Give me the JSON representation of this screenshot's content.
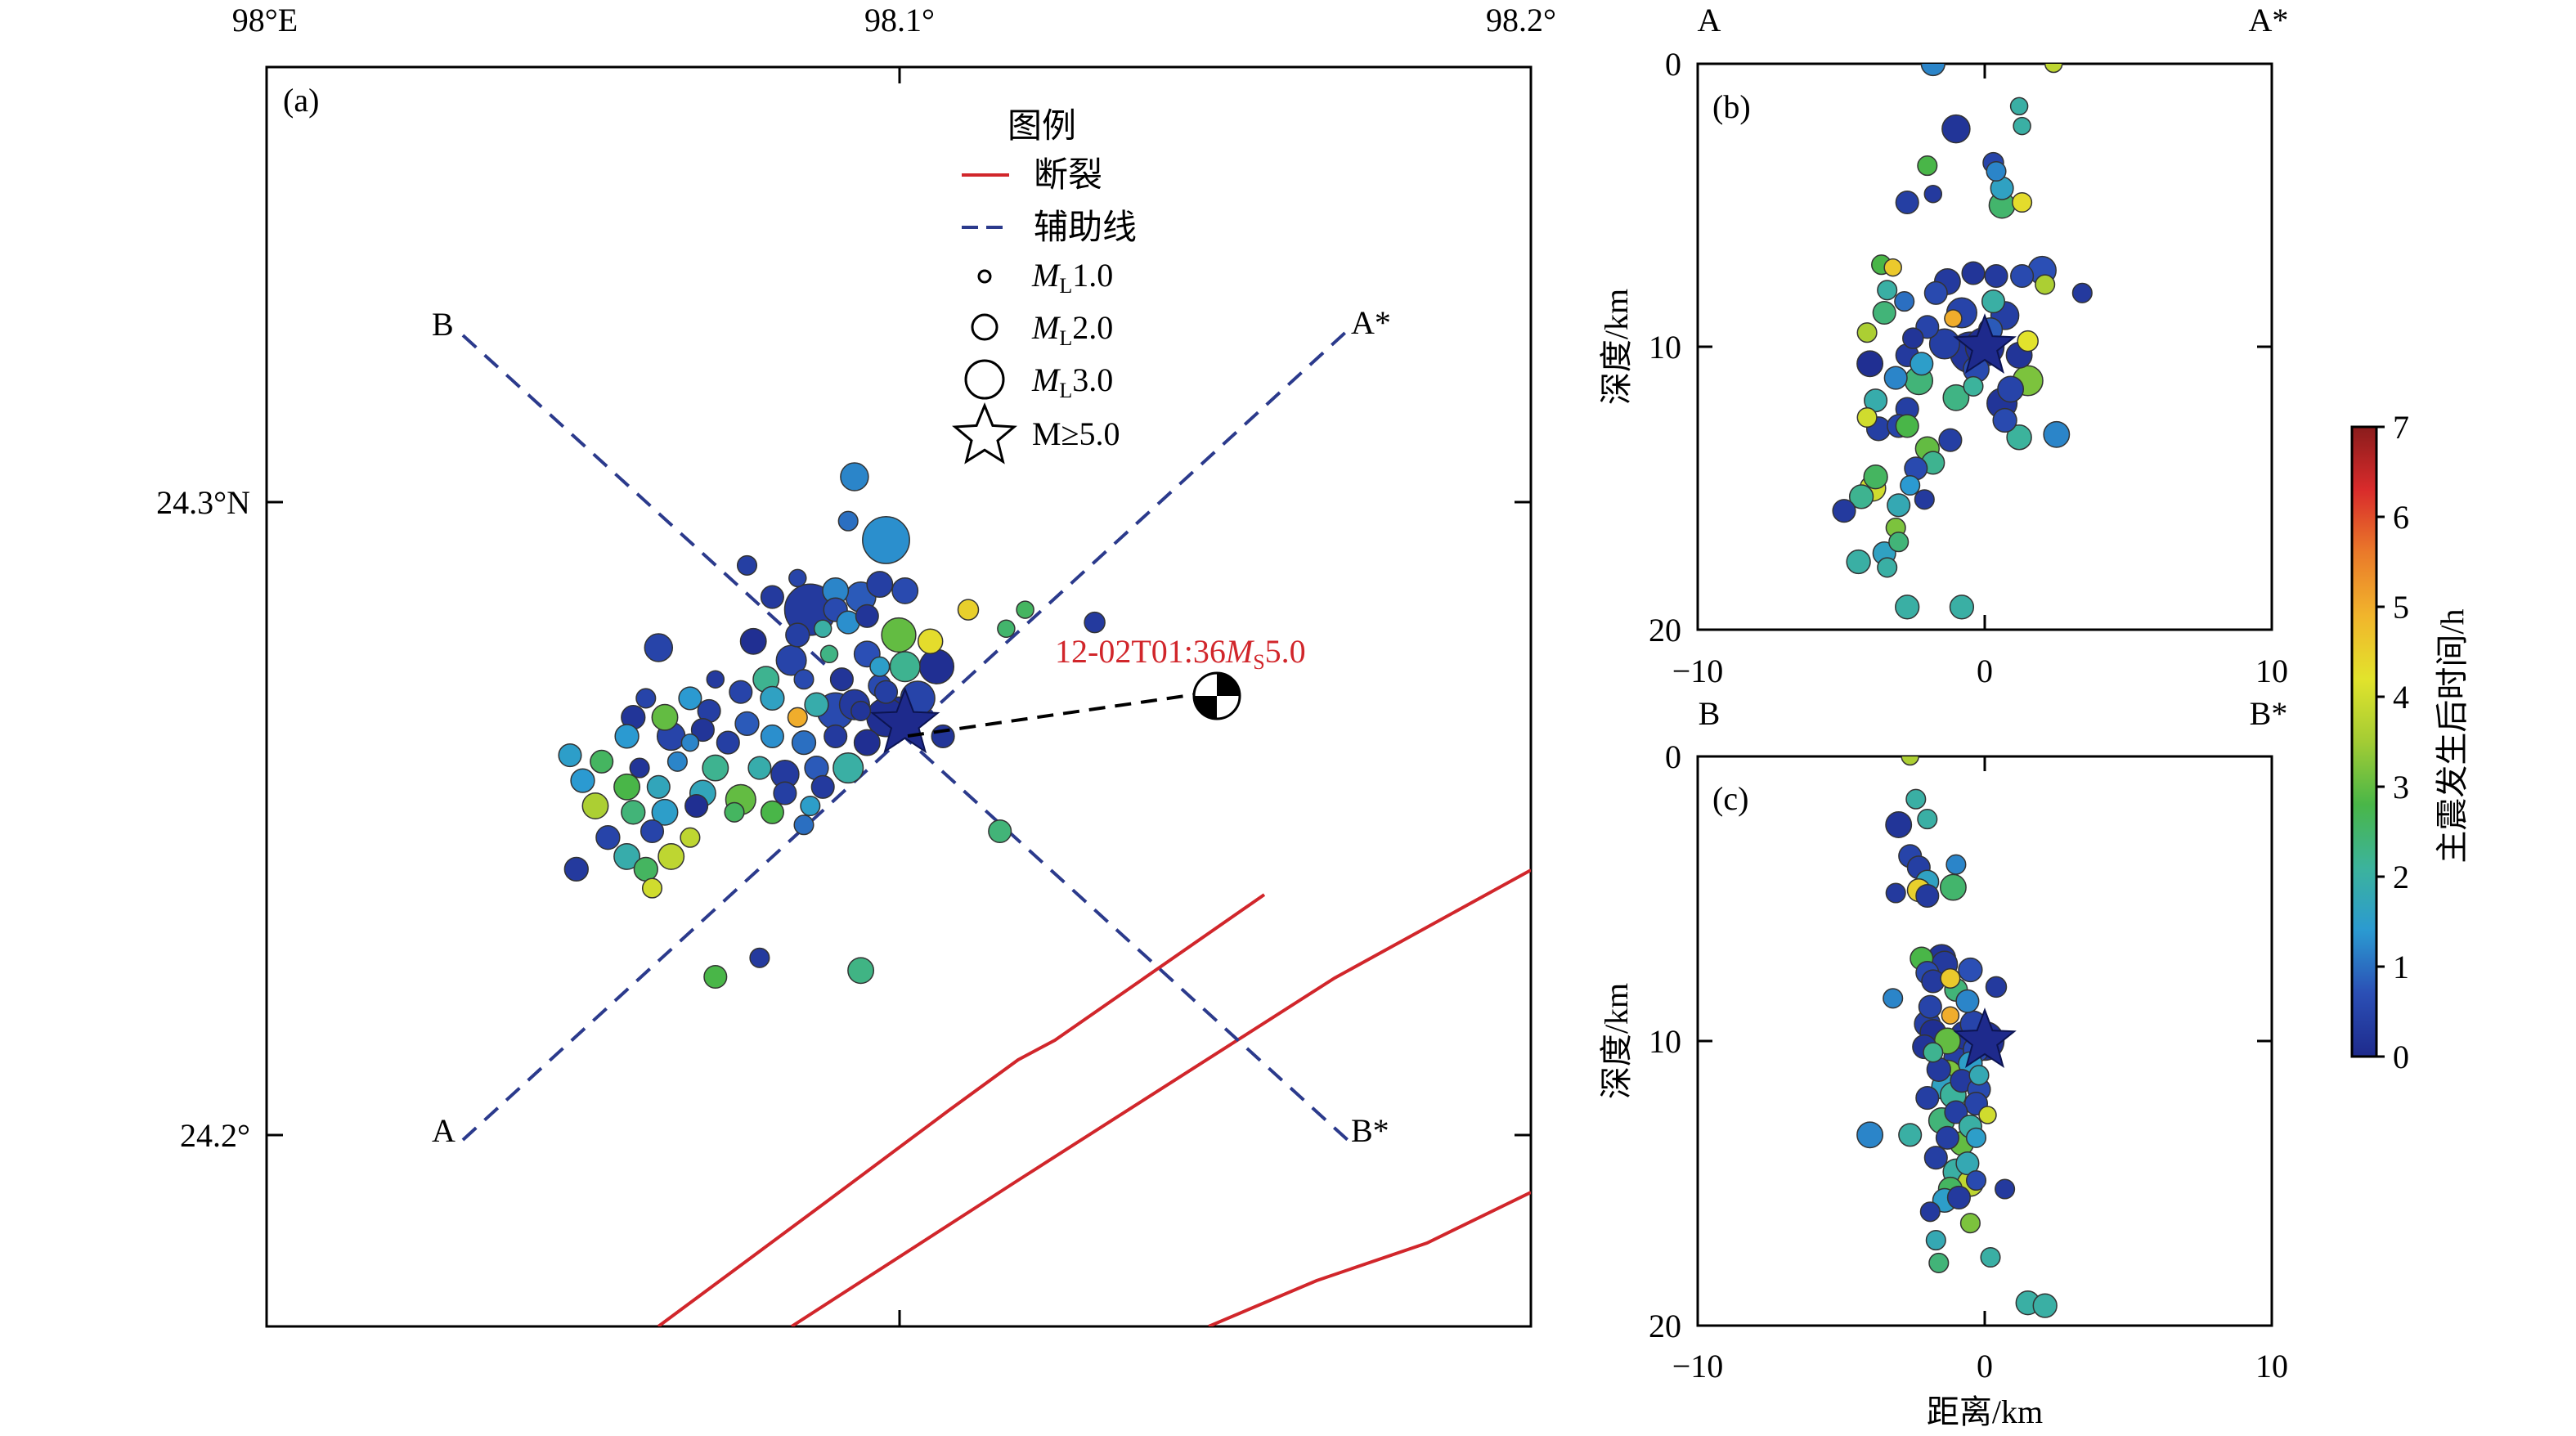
{
  "map": {
    "panel_label": "(a)",
    "lon_ticks": [
      "98°E",
      "98.1°",
      "98.2°"
    ],
    "lat_ticks": [
      "24.3°N",
      "24.2°"
    ],
    "legend": {
      "title": "图例",
      "fault": "断裂",
      "aux_line": "辅助线",
      "mag_sym": "M",
      "mag_sub": "L",
      "mag1": "1.0",
      "mag2": "2.0",
      "mag3": "3.0",
      "mainshock": "M≥5.0"
    },
    "profiles": {
      "A": {
        "start": "A",
        "end": "A*"
      },
      "B": {
        "start": "B",
        "end": "B*"
      }
    },
    "mainshock_label": {
      "prefix": "12-02T01:36",
      "sym": "M",
      "sub": "S",
      "val": "5.0",
      "color": "#d1262b"
    },
    "fault_color": "#d1262b",
    "aux_color": "#2b3a8c"
  },
  "section_b": {
    "panel_label": "(b)",
    "left_label": "A",
    "right_label": "A*",
    "x_ticks": [
      "−10",
      "0",
      "10"
    ],
    "y_ticks": [
      "0",
      "10",
      "20"
    ],
    "ylabel": "深度/km"
  },
  "section_c": {
    "panel_label": "(c)",
    "left_label": "B",
    "right_label": "B*",
    "x_ticks": [
      "−10",
      "0",
      "10"
    ],
    "y_ticks": [
      "0",
      "10",
      "20"
    ],
    "ylabel": "深度/km",
    "xlabel": "距离/km"
  },
  "colorbar": {
    "label": "主震发生后时间/h",
    "ticks": [
      "0",
      "1",
      "2",
      "3",
      "4",
      "5",
      "6",
      "7"
    ],
    "range": [
      0,
      7
    ]
  },
  "colors": {
    "jet": [
      "#1e2a8c",
      "#2b4fb5",
      "#2b9ad1",
      "#3cb39c",
      "#49b648",
      "#a3cc34",
      "#e2e32c",
      "#f1b52c",
      "#ea7a2a",
      "#d92b2b",
      "#8a1c1c"
    ]
  },
  "events": {
    "map": [
      [
        98.093,
        24.304,
        1.2,
        2.0
      ],
      [
        98.098,
        24.294,
        1.3,
        3.8
      ],
      [
        98.084,
        24.288,
        0.5,
        1.0
      ],
      [
        98.08,
        24.285,
        0.3,
        1.5
      ],
      [
        98.09,
        24.286,
        1.2,
        1.8
      ],
      [
        98.094,
        24.285,
        0.8,
        2.2
      ],
      [
        98.097,
        24.287,
        0.4,
        1.8
      ],
      [
        98.101,
        24.286,
        0.6,
        1.8
      ],
      [
        98.086,
        24.283,
        0.3,
        4.2
      ],
      [
        98.09,
        24.283,
        0.6,
        1.6
      ],
      [
        98.092,
        24.281,
        1.3,
        1.5
      ],
      [
        98.095,
        24.282,
        0.2,
        1.5
      ],
      [
        98.084,
        24.279,
        0.4,
        1.6
      ],
      [
        98.088,
        24.28,
        2.0,
        1.0
      ],
      [
        98.1,
        24.279,
        3.0,
        2.6
      ],
      [
        98.105,
        24.278,
        4.3,
        1.7
      ],
      [
        98.117,
        24.28,
        2.5,
        1.0
      ],
      [
        98.062,
        24.277,
        0.5,
        2.0
      ],
      [
        98.077,
        24.278,
        0.1,
        1.8
      ],
      [
        98.083,
        24.275,
        0.5,
        2.2
      ],
      [
        98.089,
        24.276,
        2.3,
        1.0
      ],
      [
        98.095,
        24.276,
        0.7,
        1.8
      ],
      [
        98.097,
        24.274,
        1.5,
        1.2
      ],
      [
        98.101,
        24.274,
        2.2,
        2.2
      ],
      [
        98.106,
        24.274,
        0.1,
        2.6
      ],
      [
        98.071,
        24.272,
        0.3,
        1.0
      ],
      [
        98.079,
        24.272,
        2.2,
        1.8
      ],
      [
        98.085,
        24.272,
        0.6,
        1.2
      ],
      [
        98.091,
        24.272,
        0.2,
        1.5
      ],
      [
        98.097,
        24.271,
        0.6,
        1.5
      ],
      [
        98.06,
        24.269,
        0.5,
        1.2
      ],
      [
        98.067,
        24.269,
        1.4,
        1.5
      ],
      [
        98.075,
        24.27,
        0.5,
        1.5
      ],
      [
        98.08,
        24.269,
        1.6,
        1.6
      ],
      [
        98.087,
        24.268,
        1.9,
        1.6
      ],
      [
        98.093,
        24.268,
        0.3,
        2.2
      ],
      [
        98.098,
        24.27,
        0.4,
        1.5
      ],
      [
        98.058,
        24.266,
        0.2,
        1.6
      ],
      [
        98.063,
        24.266,
        3.0,
        1.8
      ],
      [
        98.07,
        24.267,
        0.4,
        1.5
      ],
      [
        98.076,
        24.265,
        0.8,
        1.6
      ],
      [
        98.084,
        24.266,
        5.0,
        1.2
      ],
      [
        98.09,
        24.267,
        0.6,
        2.8
      ],
      [
        98.094,
        24.267,
        0.2,
        1.2
      ],
      [
        98.098,
        24.266,
        0.1,
        3.0
      ],
      [
        98.057,
        24.263,
        1.4,
        1.6
      ],
      [
        98.064,
        24.263,
        0.5,
        2.0
      ],
      [
        98.069,
        24.264,
        0.2,
        1.5
      ],
      [
        98.073,
        24.262,
        0.4,
        1.5
      ],
      [
        98.08,
        24.263,
        1.3,
        1.5
      ],
      [
        98.085,
        24.262,
        1.0,
        1.6
      ],
      [
        98.09,
        24.263,
        0.3,
        1.5
      ],
      [
        98.095,
        24.262,
        0.1,
        1.8
      ],
      [
        98.048,
        24.26,
        1.5,
        1.5
      ],
      [
        98.053,
        24.259,
        2.6,
        1.5
      ],
      [
        98.059,
        24.258,
        0.2,
        1.2
      ],
      [
        98.065,
        24.259,
        1.2,
        1.2
      ],
      [
        98.071,
        24.258,
        2.2,
        1.8
      ],
      [
        98.078,
        24.258,
        1.9,
        1.5
      ],
      [
        98.082,
        24.257,
        0.3,
        2.0
      ],
      [
        98.087,
        24.258,
        0.8,
        1.6
      ],
      [
        98.092,
        24.258,
        2.0,
        2.2
      ],
      [
        98.05,
        24.256,
        1.4,
        1.6
      ],
      [
        98.057,
        24.255,
        2.8,
        1.8
      ],
      [
        98.062,
        24.255,
        1.7,
        1.5
      ],
      [
        98.069,
        24.254,
        1.7,
        1.8
      ],
      [
        98.075,
        24.253,
        3.0,
        2.2
      ],
      [
        98.082,
        24.254,
        0.4,
        1.5
      ],
      [
        98.088,
        24.255,
        0.3,
        1.5
      ],
      [
        98.052,
        24.252,
        3.6,
        1.8
      ],
      [
        98.058,
        24.251,
        2.4,
        1.6
      ],
      [
        98.063,
        24.251,
        1.5,
        1.8
      ],
      [
        98.068,
        24.252,
        0.1,
        1.5
      ],
      [
        98.074,
        24.251,
        2.6,
        1.2
      ],
      [
        98.08,
        24.251,
        2.8,
        1.5
      ],
      [
        98.054,
        24.247,
        0.5,
        1.6
      ],
      [
        98.061,
        24.248,
        0.5,
        1.5
      ],
      [
        98.067,
        24.247,
        3.8,
        1.2
      ],
      [
        98.085,
        24.249,
        1.0,
        1.2
      ],
      [
        98.057,
        24.244,
        1.9,
        1.8
      ],
      [
        98.06,
        24.242,
        2.6,
        1.6
      ],
      [
        98.064,
        24.244,
        3.8,
        1.8
      ],
      [
        98.049,
        24.242,
        0.3,
        1.6
      ],
      [
        98.061,
        24.239,
        4.0,
        1.2
      ],
      [
        98.086,
        24.252,
        1.5,
        1.2
      ],
      [
        98.078,
        24.228,
        0.3,
        1.2
      ],
      [
        98.071,
        24.225,
        2.8,
        1.5
      ],
      [
        98.094,
        24.226,
        2.3,
        1.8
      ],
      [
        98.116,
        24.248,
        2.4,
        1.5
      ],
      [
        98.107,
        24.263,
        0.2,
        1.5
      ],
      [
        98.1,
        24.266,
        0.1,
        3.2
      ],
      [
        98.103,
        24.269,
        0.5,
        2.6
      ],
      [
        98.092,
        24.297,
        1.0,
        1.2
      ],
      [
        98.12,
        24.283,
        2.6,
        1.0
      ],
      [
        98.131,
        24.281,
        0.3,
        1.3
      ],
      [
        98.076,
        24.29,
        0.4,
        1.2
      ],
      [
        98.111,
        24.283,
        4.5,
        1.3
      ],
      [
        98.067,
        24.262,
        1.2,
        1.0
      ]
    ],
    "section_b": [
      [
        -1.8,
        0.0,
        1.2,
        1.6
      ],
      [
        2.4,
        0.0,
        3.8,
        1.0
      ],
      [
        1.2,
        1.5,
        2.0,
        1.0
      ],
      [
        1.3,
        2.2,
        2.0,
        1.0
      ],
      [
        -1.0,
        2.3,
        0.2,
        2.0
      ],
      [
        0.3,
        3.5,
        0.5,
        1.3
      ],
      [
        -2.0,
        3.6,
        2.8,
        1.2
      ],
      [
        0.4,
        3.8,
        1.2,
        1.2
      ],
      [
        0.6,
        4.4,
        1.6,
        1.5
      ],
      [
        -1.8,
        4.6,
        0.3,
        1.0
      ],
      [
        1.3,
        4.9,
        4.3,
        1.2
      ],
      [
        -2.7,
        4.9,
        0.4,
        1.5
      ],
      [
        0.6,
        5.0,
        2.5,
        1.8
      ],
      [
        -3.6,
        7.1,
        2.8,
        1.2
      ],
      [
        -3.2,
        7.2,
        4.6,
        1.0
      ],
      [
        2.0,
        7.3,
        0.7,
        2.0
      ],
      [
        -0.4,
        7.4,
        0.2,
        1.5
      ],
      [
        0.4,
        7.5,
        0.3,
        1.5
      ],
      [
        1.3,
        7.5,
        0.6,
        1.5
      ],
      [
        -1.3,
        7.7,
        0.3,
        1.8
      ],
      [
        2.1,
        7.8,
        3.6,
        1.2
      ],
      [
        -3.4,
        8.0,
        2.0,
        1.2
      ],
      [
        3.4,
        8.1,
        0.3,
        1.2
      ],
      [
        -1.7,
        8.1,
        0.6,
        1.5
      ],
      [
        0.3,
        8.4,
        2.0,
        1.5
      ],
      [
        -2.8,
        8.4,
        1.0,
        1.2
      ],
      [
        -0.8,
        8.8,
        0.5,
        2.2
      ],
      [
        -3.5,
        8.8,
        2.4,
        1.5
      ],
      [
        0.7,
        8.9,
        0.4,
        2.0
      ],
      [
        -1.1,
        9.0,
        5.0,
        1.0
      ],
      [
        -2.0,
        9.3,
        0.5,
        1.5
      ],
      [
        0.2,
        9.4,
        0.8,
        1.6
      ],
      [
        -4.1,
        9.5,
        3.6,
        1.2
      ],
      [
        -2.5,
        9.7,
        0.2,
        1.3
      ],
      [
        1.5,
        9.8,
        4.2,
        1.3
      ],
      [
        -1.4,
        9.9,
        0.4,
        2.2
      ],
      [
        0.0,
        10.0,
        0.1,
        3.0
      ],
      [
        -0.5,
        10.2,
        0.2,
        3.2
      ],
      [
        -2.7,
        10.3,
        0.3,
        1.5
      ],
      [
        1.2,
        10.3,
        0.2,
        1.8
      ],
      [
        -4.0,
        10.6,
        0.1,
        1.8
      ],
      [
        -2.2,
        10.6,
        1.5,
        1.5
      ],
      [
        -0.3,
        10.8,
        0.6,
        1.8
      ],
      [
        -2.3,
        11.2,
        2.4,
        2.0
      ],
      [
        1.5,
        11.2,
        3.2,
        2.2
      ],
      [
        -3.1,
        11.1,
        1.2,
        1.5
      ],
      [
        -0.4,
        11.4,
        2.1,
        1.2
      ],
      [
        0.9,
        11.5,
        0.5,
        1.8
      ],
      [
        -1.0,
        11.8,
        2.3,
        1.8
      ],
      [
        -3.8,
        11.9,
        1.9,
        1.5
      ],
      [
        0.6,
        12.0,
        0.2,
        2.2
      ],
      [
        -2.7,
        12.2,
        0.4,
        1.5
      ],
      [
        -4.1,
        12.5,
        4.0,
        1.2
      ],
      [
        0.7,
        12.6,
        0.6,
        1.6
      ],
      [
        -3.0,
        12.8,
        0.5,
        1.5
      ],
      [
        -2.7,
        12.8,
        2.8,
        1.5
      ],
      [
        -3.7,
        12.9,
        0.4,
        1.6
      ],
      [
        2.5,
        13.1,
        1.2,
        1.8
      ],
      [
        1.2,
        13.2,
        2.1,
        1.7
      ],
      [
        -1.2,
        13.3,
        0.4,
        1.5
      ],
      [
        -2.0,
        13.6,
        3.0,
        1.6
      ],
      [
        -1.8,
        14.1,
        2.2,
        1.5
      ],
      [
        -2.4,
        14.3,
        0.6,
        1.5
      ],
      [
        -3.8,
        14.6,
        2.6,
        1.6
      ],
      [
        -3.9,
        15.0,
        4.0,
        1.8
      ],
      [
        -2.6,
        14.9,
        1.4,
        1.2
      ],
      [
        -4.3,
        15.3,
        2.2,
        1.6
      ],
      [
        -2.1,
        15.4,
        0.3,
        1.2
      ],
      [
        -3.0,
        15.6,
        1.8,
        1.5
      ],
      [
        -4.9,
        15.8,
        0.3,
        1.5
      ],
      [
        -3.1,
        16.4,
        3.2,
        1.2
      ],
      [
        -3.0,
        16.9,
        2.4,
        1.2
      ],
      [
        -3.5,
        17.3,
        1.6,
        1.5
      ],
      [
        -4.4,
        17.6,
        2.0,
        1.6
      ],
      [
        -3.4,
        17.8,
        2.0,
        1.2
      ],
      [
        -2.7,
        19.2,
        2.0,
        1.6
      ],
      [
        -0.8,
        19.2,
        2.0,
        1.6
      ]
    ],
    "section_c": [
      [
        -2.6,
        0.0,
        3.6,
        1.0
      ],
      [
        -2.4,
        1.5,
        2.0,
        1.2
      ],
      [
        -2.0,
        2.2,
        2.0,
        1.2
      ],
      [
        -3.0,
        2.4,
        0.2,
        1.8
      ],
      [
        -2.6,
        3.5,
        0.5,
        1.5
      ],
      [
        -1.0,
        3.8,
        1.2,
        1.2
      ],
      [
        -2.3,
        3.9,
        0.4,
        1.5
      ],
      [
        -2.0,
        4.4,
        1.6,
        1.5
      ],
      [
        -1.1,
        4.6,
        2.5,
        1.8
      ],
      [
        -2.3,
        4.7,
        4.5,
        1.5
      ],
      [
        -3.1,
        4.8,
        0.3,
        1.2
      ],
      [
        -2.0,
        4.9,
        0.3,
        1.5
      ],
      [
        -1.5,
        7.1,
        0.2,
        2.0
      ],
      [
        -2.2,
        7.1,
        2.8,
        1.5
      ],
      [
        -1.4,
        7.3,
        0.3,
        1.8
      ],
      [
        -0.5,
        7.5,
        0.7,
        1.6
      ],
      [
        -2.0,
        7.6,
        0.6,
        1.5
      ],
      [
        -1.2,
        7.8,
        4.6,
        1.2
      ],
      [
        -1.8,
        7.9,
        0.3,
        1.5
      ],
      [
        0.4,
        8.1,
        0.3,
        1.3
      ],
      [
        -1.0,
        8.2,
        2.4,
        1.5
      ],
      [
        -3.2,
        8.5,
        1.2,
        1.2
      ],
      [
        -0.6,
        8.6,
        1.2,
        1.5
      ],
      [
        -1.9,
        8.8,
        0.5,
        1.5
      ],
      [
        -1.2,
        9.1,
        5.0,
        1.0
      ],
      [
        -2.0,
        9.4,
        0.4,
        1.8
      ],
      [
        -0.4,
        9.4,
        0.5,
        1.8
      ],
      [
        -1.8,
        9.7,
        0.1,
        1.8
      ],
      [
        -0.7,
        9.8,
        0.2,
        2.0
      ],
      [
        -1.3,
        10.0,
        3.0,
        1.8
      ],
      [
        0.0,
        10.0,
        0.1,
        3.0
      ],
      [
        -2.1,
        10.2,
        0.2,
        1.6
      ],
      [
        -0.3,
        10.3,
        0.6,
        1.8
      ],
      [
        -1.8,
        10.4,
        2.2,
        1.2
      ],
      [
        -0.9,
        10.6,
        0.4,
        2.2
      ],
      [
        -0.5,
        10.8,
        1.5,
        1.6
      ],
      [
        -1.6,
        11.0,
        0.3,
        1.6
      ],
      [
        -0.2,
        11.2,
        1.8,
        1.2
      ],
      [
        -1.3,
        11.2,
        3.2,
        2.2
      ],
      [
        -0.8,
        11.4,
        0.3,
        1.5
      ],
      [
        -1.4,
        11.6,
        1.6,
        1.8
      ],
      [
        -0.2,
        11.7,
        0.6,
        1.5
      ],
      [
        -1.1,
        11.9,
        2.1,
        1.8
      ],
      [
        -2.0,
        12.0,
        0.4,
        1.5
      ],
      [
        -0.3,
        12.2,
        0.5,
        1.5
      ],
      [
        0.1,
        12.6,
        4.0,
        1.0
      ],
      [
        -1.0,
        12.5,
        0.4,
        1.5
      ],
      [
        -1.5,
        12.8,
        2.4,
        1.8
      ],
      [
        -0.5,
        13.0,
        2.0,
        1.5
      ],
      [
        -4.0,
        13.3,
        1.2,
        1.8
      ],
      [
        -2.6,
        13.3,
        2.0,
        1.5
      ],
      [
        -1.3,
        13.4,
        0.4,
        1.5
      ],
      [
        -0.8,
        13.6,
        3.0,
        1.6
      ],
      [
        -0.3,
        13.4,
        1.5,
        1.2
      ],
      [
        -1.7,
        14.1,
        0.4,
        1.5
      ],
      [
        -0.6,
        14.3,
        1.8,
        1.5
      ],
      [
        -1.0,
        14.6,
        2.0,
        1.8
      ],
      [
        -0.3,
        14.9,
        0.6,
        1.2
      ],
      [
        -0.5,
        15.0,
        3.8,
        1.8
      ],
      [
        -1.2,
        15.2,
        2.6,
        1.6
      ],
      [
        0.7,
        15.2,
        0.3,
        1.2
      ],
      [
        -0.9,
        15.5,
        0.3,
        1.5
      ],
      [
        -1.4,
        15.6,
        1.5,
        1.6
      ],
      [
        -1.9,
        16.0,
        0.3,
        1.2
      ],
      [
        -0.5,
        16.4,
        3.2,
        1.2
      ],
      [
        -1.7,
        17.0,
        1.8,
        1.2
      ],
      [
        0.2,
        17.6,
        2.0,
        1.2
      ],
      [
        -1.6,
        17.8,
        2.4,
        1.2
      ],
      [
        1.5,
        19.2,
        2.0,
        1.6
      ],
      [
        2.1,
        19.3,
        2.0,
        1.6
      ]
    ]
  }
}
